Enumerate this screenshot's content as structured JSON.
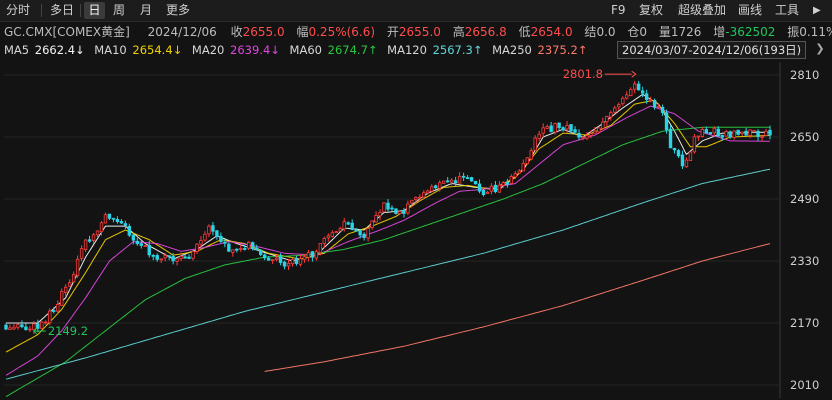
{
  "toolbar": {
    "tabs": [
      "分时",
      "多日",
      "日",
      "周",
      "月",
      "更多"
    ],
    "active_tab": "日",
    "right_tools": [
      "F9",
      "复权",
      "超级叠加",
      "画线",
      "工具"
    ]
  },
  "quote": {
    "symbol": "GC.CMX[COMEX黄金]",
    "date": "2024/12/06",
    "close_label": "收",
    "close": "2655.0",
    "change_label": "幅",
    "change": "0.25%(6.6)",
    "open_label": "开",
    "open": "2655.0",
    "high_label": "高",
    "high": "2656.8",
    "low_label": "低",
    "low": "2654.0",
    "settle_label": "结",
    "settle": "0.0",
    "position_label": "仓",
    "position": "0",
    "volume_label": "量",
    "volume": "1726",
    "increase_label": "增",
    "increase": "-362502",
    "amplitude_label": "振",
    "amplitude": "0.11%"
  },
  "ma_legend": [
    {
      "name": "MA5",
      "value": "2662.4↓",
      "color": "#f5f5f5"
    },
    {
      "name": "MA10",
      "value": "2654.4↓",
      "color": "#f0d000"
    },
    {
      "name": "MA20",
      "value": "2639.4↓",
      "color": "#e046e0"
    },
    {
      "name": "MA60",
      "value": "2674.7↑",
      "color": "#28c840"
    },
    {
      "name": "MA120",
      "value": "2567.3↑",
      "color": "#60d6d6"
    },
    {
      "name": "MA250",
      "value": "2375.2↑",
      "color": "#ff7a6a"
    }
  ],
  "range_label": "2024/03/07-2024/12/06(193日)",
  "colors": {
    "up": "#ff3b3b",
    "down": "#2bd4e4",
    "background": "#131313",
    "grid": "#242424"
  },
  "chart_data": {
    "type": "candlestick",
    "y_ticks": [
      2810,
      2650,
      2490,
      2330,
      2170,
      2010
    ],
    "ylim": [
      2000,
      2830
    ],
    "x_range": [
      0,
      192
    ],
    "annotations": [
      {
        "text": "2801.8",
        "x": 158,
        "y": 2801.8,
        "color": "#ff4d4d",
        "kind": "high"
      },
      {
        "text": "2149.2",
        "x": 7,
        "y": 2149.2,
        "color": "#22c55e",
        "kind": "low"
      }
    ],
    "price_anchors": [
      [
        0,
        2165
      ],
      [
        7,
        2158
      ],
      [
        10,
        2178
      ],
      [
        15,
        2260
      ],
      [
        20,
        2375
      ],
      [
        25,
        2440
      ],
      [
        28,
        2435
      ],
      [
        32,
        2390
      ],
      [
        37,
        2345
      ],
      [
        42,
        2330
      ],
      [
        46,
        2345
      ],
      [
        51,
        2420
      ],
      [
        56,
        2365
      ],
      [
        61,
        2370
      ],
      [
        66,
        2330
      ],
      [
        72,
        2325
      ],
      [
        77,
        2345
      ],
      [
        82,
        2400
      ],
      [
        86,
        2430
      ],
      [
        90,
        2395
      ],
      [
        95,
        2470
      ],
      [
        100,
        2455
      ],
      [
        105,
        2510
      ],
      [
        110,
        2530
      ],
      [
        115,
        2540
      ],
      [
        120,
        2510
      ],
      [
        124,
        2515
      ],
      [
        130,
        2580
      ],
      [
        134,
        2660
      ],
      [
        138,
        2675
      ],
      [
        142,
        2670
      ],
      [
        145,
        2640
      ],
      [
        150,
        2695
      ],
      [
        154,
        2730
      ],
      [
        158,
        2790
      ],
      [
        162,
        2745
      ],
      [
        165,
        2720
      ],
      [
        167,
        2625
      ],
      [
        170,
        2580
      ],
      [
        173,
        2640
      ],
      [
        176,
        2670
      ],
      [
        180,
        2655
      ],
      [
        185,
        2665
      ],
      [
        192,
        2655
      ]
    ],
    "moving_averages": [
      {
        "name": "MA5",
        "color": "#f5f5f5",
        "anchors": [
          [
            0,
            2170
          ],
          [
            8,
            2170
          ],
          [
            15,
            2235
          ],
          [
            20,
            2340
          ],
          [
            25,
            2420
          ],
          [
            30,
            2420
          ],
          [
            35,
            2375
          ],
          [
            42,
            2335
          ],
          [
            48,
            2360
          ],
          [
            53,
            2395
          ],
          [
            58,
            2375
          ],
          [
            64,
            2355
          ],
          [
            72,
            2330
          ],
          [
            78,
            2345
          ],
          [
            85,
            2415
          ],
          [
            90,
            2410
          ],
          [
            95,
            2455
          ],
          [
            100,
            2460
          ],
          [
            106,
            2505
          ],
          [
            112,
            2530
          ],
          [
            118,
            2520
          ],
          [
            124,
            2515
          ],
          [
            130,
            2565
          ],
          [
            135,
            2650
          ],
          [
            140,
            2670
          ],
          [
            145,
            2650
          ],
          [
            150,
            2685
          ],
          [
            155,
            2725
          ],
          [
            160,
            2760
          ],
          [
            164,
            2735
          ],
          [
            168,
            2665
          ],
          [
            171,
            2605
          ],
          [
            175,
            2640
          ],
          [
            180,
            2660
          ],
          [
            186,
            2662
          ],
          [
            192,
            2662
          ]
        ]
      },
      {
        "name": "MA10",
        "color": "#f0d000",
        "anchors": [
          [
            0,
            2095
          ],
          [
            8,
            2140
          ],
          [
            14,
            2205
          ],
          [
            20,
            2300
          ],
          [
            25,
            2385
          ],
          [
            30,
            2410
          ],
          [
            36,
            2385
          ],
          [
            42,
            2345
          ],
          [
            48,
            2355
          ],
          [
            54,
            2385
          ],
          [
            60,
            2375
          ],
          [
            66,
            2350
          ],
          [
            74,
            2335
          ],
          [
            80,
            2350
          ],
          [
            86,
            2400
          ],
          [
            92,
            2420
          ],
          [
            98,
            2445
          ],
          [
            104,
            2485
          ],
          [
            110,
            2520
          ],
          [
            116,
            2525
          ],
          [
            122,
            2515
          ],
          [
            128,
            2545
          ],
          [
            134,
            2620
          ],
          [
            140,
            2660
          ],
          [
            146,
            2655
          ],
          [
            152,
            2680
          ],
          [
            158,
            2735
          ],
          [
            163,
            2745
          ],
          [
            168,
            2685
          ],
          [
            172,
            2625
          ],
          [
            176,
            2625
          ],
          [
            182,
            2650
          ],
          [
            192,
            2654
          ]
        ]
      },
      {
        "name": "MA20",
        "color": "#e046e0",
        "anchors": [
          [
            0,
            2035
          ],
          [
            8,
            2085
          ],
          [
            14,
            2150
          ],
          [
            20,
            2235
          ],
          [
            26,
            2330
          ],
          [
            32,
            2380
          ],
          [
            38,
            2375
          ],
          [
            44,
            2355
          ],
          [
            50,
            2365
          ],
          [
            56,
            2380
          ],
          [
            62,
            2370
          ],
          [
            70,
            2350
          ],
          [
            78,
            2345
          ],
          [
            86,
            2380
          ],
          [
            94,
            2410
          ],
          [
            100,
            2435
          ],
          [
            108,
            2480
          ],
          [
            114,
            2510
          ],
          [
            120,
            2515
          ],
          [
            128,
            2530
          ],
          [
            134,
            2580
          ],
          [
            140,
            2630
          ],
          [
            148,
            2655
          ],
          [
            156,
            2700
          ],
          [
            162,
            2730
          ],
          [
            168,
            2710
          ],
          [
            174,
            2665
          ],
          [
            182,
            2640
          ],
          [
            192,
            2639
          ]
        ]
      },
      {
        "name": "MA60",
        "color": "#28c840",
        "anchors": [
          [
            0,
            1980
          ],
          [
            15,
            2070
          ],
          [
            25,
            2150
          ],
          [
            35,
            2230
          ],
          [
            45,
            2285
          ],
          [
            55,
            2320
          ],
          [
            65,
            2340
          ],
          [
            75,
            2345
          ],
          [
            85,
            2360
          ],
          [
            95,
            2385
          ],
          [
            105,
            2420
          ],
          [
            115,
            2455
          ],
          [
            125,
            2490
          ],
          [
            135,
            2530
          ],
          [
            145,
            2580
          ],
          [
            155,
            2630
          ],
          [
            165,
            2665
          ],
          [
            175,
            2675
          ],
          [
            192,
            2675
          ]
        ]
      },
      {
        "name": "MA120",
        "color": "#60d6d6",
        "anchors": [
          [
            0,
            2025
          ],
          [
            20,
            2080
          ],
          [
            40,
            2140
          ],
          [
            60,
            2200
          ],
          [
            80,
            2250
          ],
          [
            100,
            2300
          ],
          [
            120,
            2350
          ],
          [
            140,
            2410
          ],
          [
            160,
            2480
          ],
          [
            175,
            2530
          ],
          [
            192,
            2567
          ]
        ]
      },
      {
        "name": "MA250",
        "color": "#ff7a6a",
        "anchors": [
          [
            65,
            2045
          ],
          [
            80,
            2070
          ],
          [
            100,
            2110
          ],
          [
            120,
            2160
          ],
          [
            140,
            2215
          ],
          [
            160,
            2280
          ],
          [
            175,
            2330
          ],
          [
            192,
            2375
          ]
        ]
      }
    ]
  }
}
